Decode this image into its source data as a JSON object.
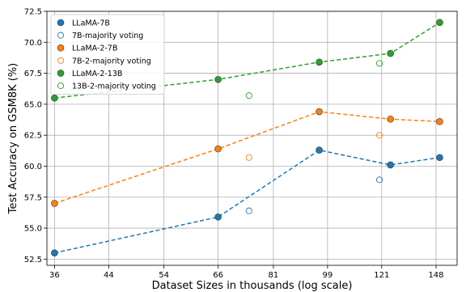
{
  "chart_data": {
    "type": "scatter",
    "xlabel": "Dataset Sizes in thousands (log scale)",
    "ylabel": "Test Accuracy on GSM8K (%)",
    "x_scale": "log",
    "xlim": [
      35,
      160
    ],
    "ylim": [
      52.0,
      72.5
    ],
    "x_ticks": [
      36,
      44,
      54,
      66,
      81,
      99,
      121,
      148
    ],
    "y_ticks": [
      52.5,
      55.0,
      57.5,
      60.0,
      62.5,
      65.0,
      67.5,
      70.0,
      72.5
    ],
    "grid": true,
    "legend_position": "top-left",
    "series": [
      {
        "name": "LLaMA-7B",
        "color": "#1f77b4",
        "marker": "filled",
        "line": "dashed",
        "x": [
          36,
          66,
          96,
          125,
          150
        ],
        "y": [
          53.0,
          55.9,
          61.3,
          60.1,
          60.7
        ]
      },
      {
        "name": "7B-majority voting",
        "color": "#1f77b4",
        "marker": "hollow",
        "line": "none",
        "x": [
          74,
          120
        ],
        "y": [
          56.4,
          58.9
        ]
      },
      {
        "name": "LLaMA-2-7B",
        "color": "#ff7f0e",
        "marker": "filled",
        "line": "dashed",
        "x": [
          36,
          66,
          96,
          125,
          150
        ],
        "y": [
          57.0,
          61.4,
          64.4,
          63.8,
          63.6
        ]
      },
      {
        "name": "7B-2-majority voting",
        "color": "#ff7f0e",
        "marker": "hollow",
        "line": "none",
        "x": [
          74,
          120
        ],
        "y": [
          60.7,
          62.5
        ]
      },
      {
        "name": "LLaMA-2-13B",
        "color": "#2ca02c",
        "marker": "filled",
        "line": "dashed",
        "x": [
          36,
          66,
          96,
          125,
          150
        ],
        "y": [
          65.5,
          67.0,
          68.4,
          69.1,
          71.6
        ]
      },
      {
        "name": "13B-2-majority voting",
        "color": "#2ca02c",
        "marker": "hollow",
        "line": "none",
        "x": [
          74,
          120
        ],
        "y": [
          65.7,
          68.3
        ]
      }
    ]
  }
}
